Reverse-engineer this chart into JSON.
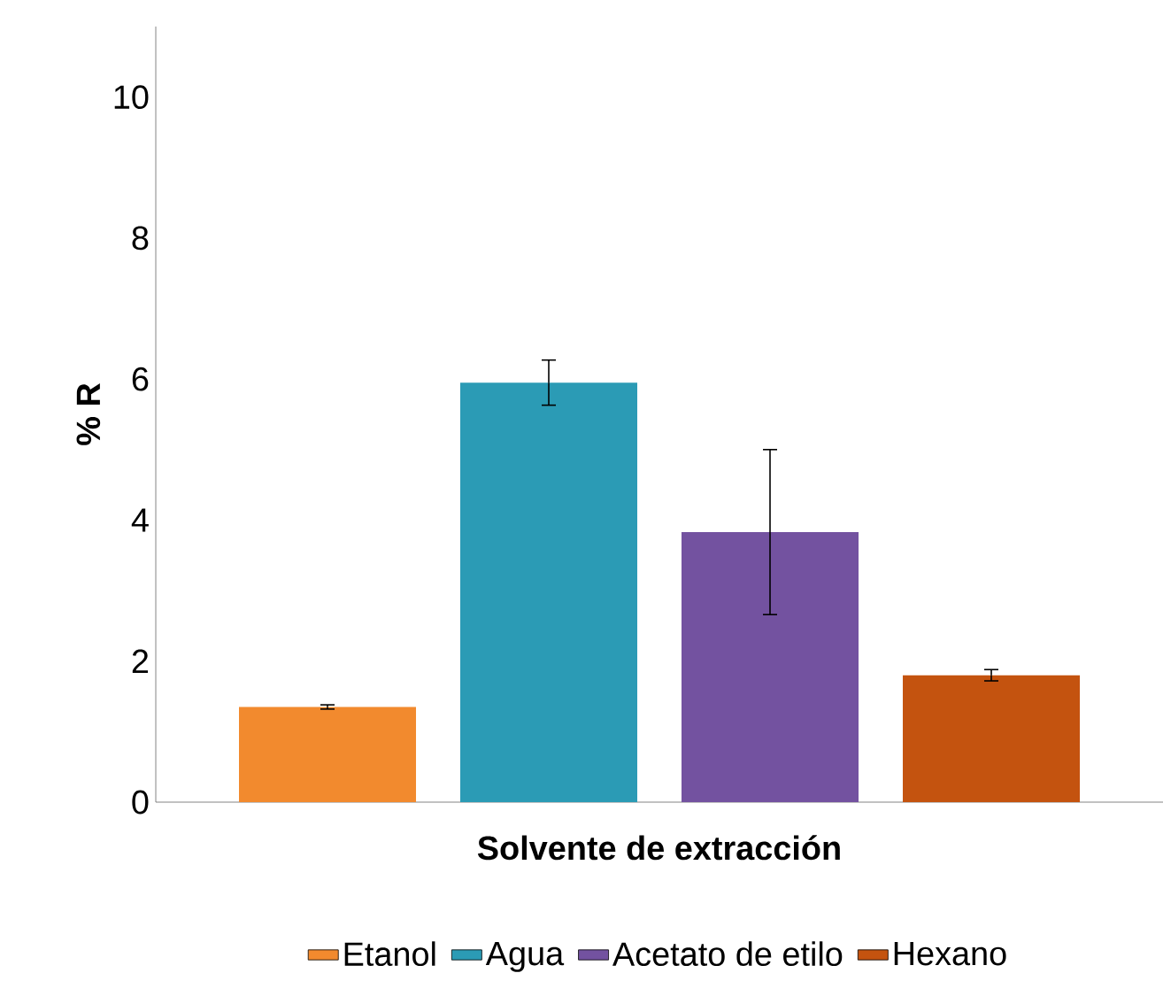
{
  "chart_data": {
    "type": "bar",
    "xlabel": "Solvente de extracción",
    "ylabel": "% R",
    "categories": [
      null
    ],
    "series": [
      {
        "name": "Etanol",
        "color": "#f28a2e",
        "values": [
          1.35
        ],
        "errors": [
          0.03
        ]
      },
      {
        "name": "Agua",
        "color": "#2b9bb5",
        "values": [
          5.95
        ],
        "errors": [
          0.32
        ]
      },
      {
        "name": "Acetato de etilo",
        "color": "#7352a0",
        "values": [
          3.83
        ],
        "errors": [
          1.17
        ]
      },
      {
        "name": "Hexano",
        "color": "#c4530f",
        "values": [
          1.8
        ],
        "errors": [
          0.08
        ]
      }
    ],
    "ylim": [
      0,
      11
    ],
    "yticks": [
      0,
      2,
      4,
      6,
      8,
      10
    ],
    "legend": "bottom"
  }
}
